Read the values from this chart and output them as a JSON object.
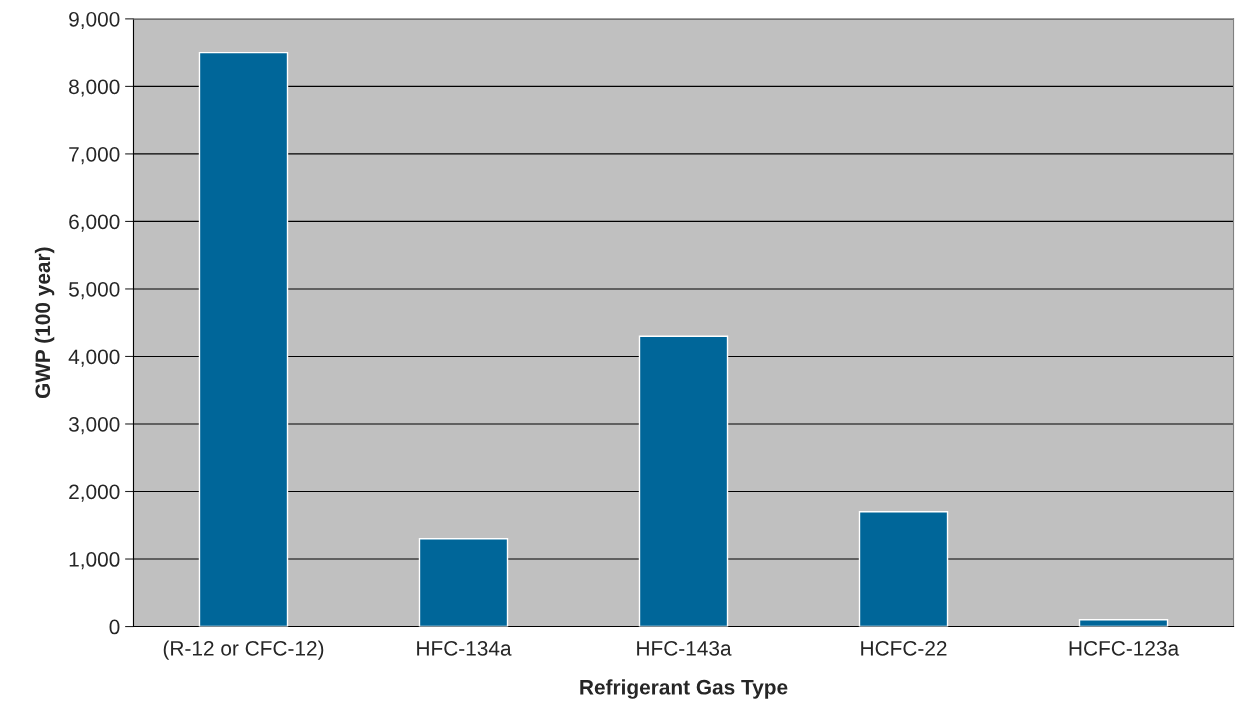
{
  "chart_data": {
    "type": "bar",
    "xlabel": "Refrigerant Gas Type",
    "ylabel": "GWP (100 year)",
    "categories": [
      "(R-12 or CFC-12)",
      "HFC-134a",
      "HFC-143a",
      "HCFC-22",
      "HCFC-123a"
    ],
    "values": [
      8500,
      1300,
      4300,
      1700,
      100
    ],
    "color": "#006699",
    "ylim": [
      0,
      9000
    ],
    "yticks": [
      {
        "value": 0,
        "label": "0"
      },
      {
        "value": 1000,
        "label": "1,000"
      },
      {
        "value": 2000,
        "label": "2,000"
      },
      {
        "value": 3000,
        "label": "3,000"
      },
      {
        "value": 4000,
        "label": "4,000"
      },
      {
        "value": 5000,
        "label": "5,000"
      },
      {
        "value": 6000,
        "label": "6,000"
      },
      {
        "value": 7000,
        "label": "7,000"
      },
      {
        "value": 8000,
        "label": "8,000"
      },
      {
        "value": 9000,
        "label": "9,000"
      }
    ],
    "grid": "y",
    "legend": false
  }
}
